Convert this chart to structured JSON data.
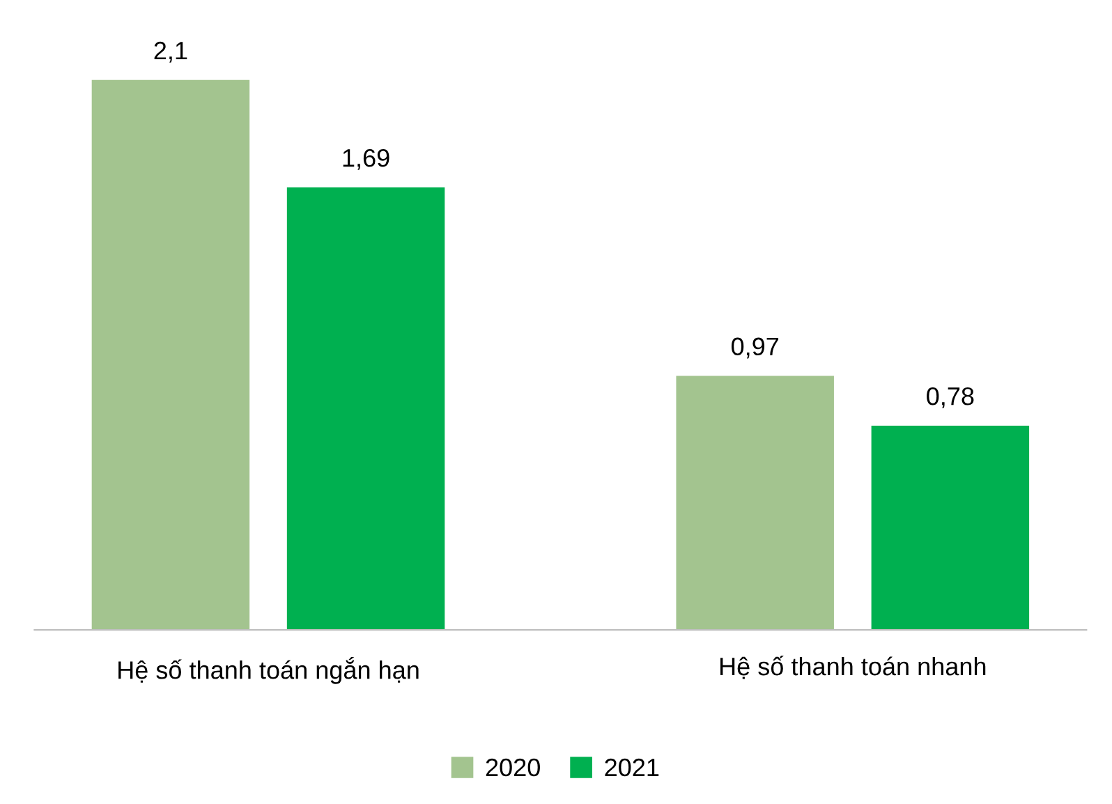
{
  "chart_data": {
    "type": "bar",
    "categories": [
      "Hệ số thanh toán ngắn hạn",
      "Hệ số thanh toán nhanh"
    ],
    "series": [
      {
        "name": "2020",
        "color": "#a3c48f",
        "values": [
          2.1,
          0.97
        ],
        "value_labels": [
          "2,1",
          "0,97"
        ]
      },
      {
        "name": "2021",
        "color": "#00b050",
        "values": [
          1.69,
          0.78
        ],
        "value_labels": [
          "1,69",
          "0,78"
        ]
      }
    ],
    "legend": "bottom",
    "grid": false
  }
}
